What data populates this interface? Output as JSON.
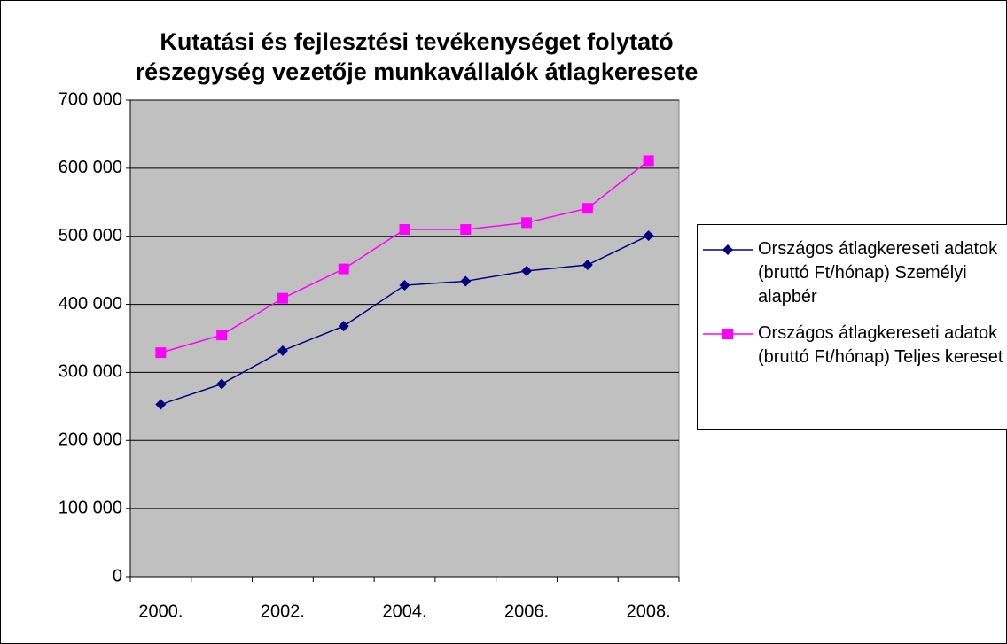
{
  "chart_data": {
    "type": "line",
    "title": "Kutatási és fejlesztési tevékenységet folytató részegység vezetője munkavállalók átlagkeresete",
    "categories": [
      "2000.",
      null,
      "2002.",
      null,
      "2004.",
      null,
      "2006.",
      null,
      "2008."
    ],
    "series": [
      {
        "name": "Országos átlagkereseti adatok (bruttó Ft/hónap) Személyi alapbér",
        "color": "#000080",
        "marker": "diamond",
        "values": [
          253000,
          283000,
          332000,
          368000,
          428000,
          434000,
          449000,
          458000,
          501000
        ]
      },
      {
        "name": "Országos átlagkereseti adatok (bruttó Ft/hónap) Teljes kereset",
        "color": "#ff00ff",
        "marker": "square",
        "values": [
          329000,
          355000,
          409000,
          452000,
          510000,
          510000,
          520000,
          541000,
          611000
        ]
      }
    ],
    "ylim": [
      0,
      700000
    ],
    "yticks": [
      0,
      {
        "value": 100000,
        "label": "100 000"
      },
      {
        "value": 200000,
        "label": "200 000"
      },
      {
        "value": 300000,
        "label": "300 000"
      },
      {
        "value": 400000,
        "label": "400 000"
      },
      {
        "value": 500000,
        "label": "500 000"
      },
      {
        "value": 600000,
        "label": "600 000"
      },
      {
        "value": 700000,
        "label": "700 000"
      }
    ],
    "grid": true,
    "legend": "right",
    "plot_background": "#c0c0c0"
  }
}
